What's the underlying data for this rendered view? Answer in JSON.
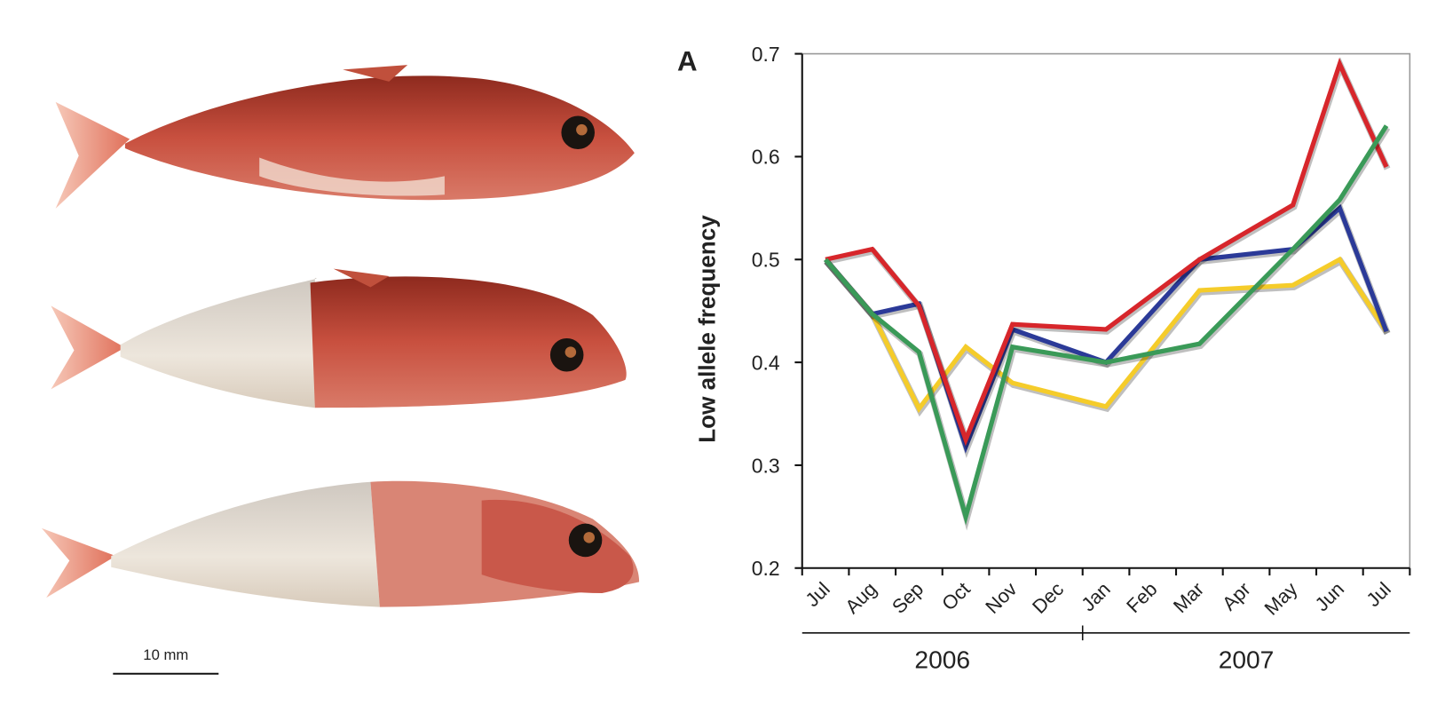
{
  "panel_label": "A",
  "scale_bar": "10 mm",
  "chart_data": {
    "type": "line",
    "ylabel": "Low allele frequency",
    "categories": [
      "Jul",
      "Aug",
      "Sep",
      "Oct",
      "Nov",
      "Dec",
      "Jan",
      "Feb",
      "Mar",
      "Apr",
      "May",
      "Jun",
      "Jul"
    ],
    "x_groups": [
      {
        "label": "2006",
        "span": 6
      },
      {
        "label": "2007",
        "span": 7
      }
    ],
    "connect_gaps": true,
    "series": [
      {
        "color": "#d7262b",
        "values": [
          0.5,
          0.51,
          0.455,
          0.325,
          0.437,
          null,
          0.432,
          null,
          0.5,
          null,
          0.553,
          0.69,
          0.59
        ]
      },
      {
        "color": "#2b3a98",
        "values": [
          0.5,
          0.447,
          0.457,
          0.318,
          0.432,
          null,
          0.4,
          null,
          0.5,
          null,
          0.51,
          0.55,
          0.43
        ]
      },
      {
        "color": "#f5cc2a",
        "values": [
          0.5,
          0.447,
          0.355,
          0.415,
          0.38,
          null,
          0.357,
          null,
          0.47,
          null,
          0.475,
          0.5,
          0.43
        ]
      },
      {
        "color": "#3a9a58",
        "values": [
          0.5,
          0.447,
          0.41,
          0.25,
          0.415,
          null,
          0.4,
          null,
          0.418,
          null,
          0.51,
          0.558,
          0.63
        ]
      }
    ],
    "ylim": [
      0.2,
      0.7
    ],
    "yticks": [
      0.2,
      0.3,
      0.4,
      0.5,
      0.6,
      0.7
    ]
  }
}
